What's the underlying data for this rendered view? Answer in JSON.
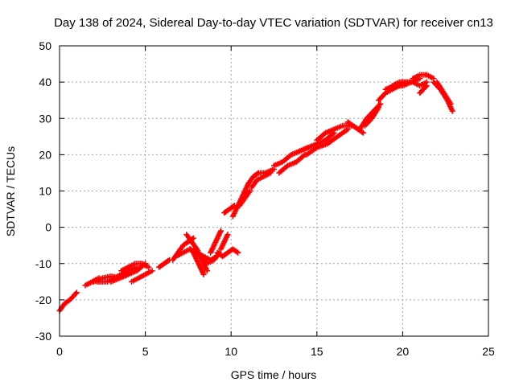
{
  "chart_data": {
    "type": "scatter",
    "title": "Day 138 of 2024, Sidereal Day-to-day VTEC variation (SDTVAR) for receiver cn13",
    "xlabel": "GPS time / hours",
    "ylabel": "SDTVAR / TECUs",
    "xlim": [
      0,
      25
    ],
    "ylim": [
      -30,
      50
    ],
    "xticks": [
      0,
      5,
      10,
      15,
      20,
      25
    ],
    "yticks": [
      -30,
      -20,
      -10,
      0,
      10,
      20,
      30,
      40,
      50
    ],
    "grid": true,
    "marker": "+",
    "marker_color": "#ff0000",
    "series": [
      {
        "name": "SDTVAR",
        "segments": [
          {
            "x": [
              0.0,
              0.3,
              0.6,
              1.0
            ],
            "y": [
              -23,
              -21,
              -20,
              -18
            ]
          },
          {
            "x": [
              1.5,
              1.9,
              2.3
            ],
            "y": [
              -16,
              -15,
              -14
            ]
          },
          {
            "x": [
              2.0,
              2.5,
              3.0,
              3.5,
              4.0
            ],
            "y": [
              -15,
              -14,
              -13.5,
              -14,
              -13
            ]
          },
          {
            "x": [
              2.2,
              2.8,
              3.2,
              3.6,
              4.0,
              4.5
            ],
            "y": [
              -15,
              -15,
              -14,
              -13,
              -12,
              -11
            ]
          },
          {
            "x": [
              3.0,
              3.5,
              4.0,
              4.5,
              5.0
            ],
            "y": [
              -15,
              -14,
              -13,
              -12,
              -10
            ]
          },
          {
            "x": [
              3.6,
              4.0,
              4.4,
              4.8,
              5.2
            ],
            "y": [
              -12,
              -11,
              -10,
              -10,
              -11
            ]
          },
          {
            "x": [
              4.2,
              4.6,
              5.0,
              5.4
            ],
            "y": [
              -15,
              -14,
              -13,
              -12
            ]
          },
          {
            "x": [
              5.8,
              6.1,
              6.4
            ],
            "y": [
              -11,
              -10,
              -9
            ]
          },
          {
            "x": [
              6.6,
              6.9,
              7.2,
              7.5,
              7.8
            ],
            "y": [
              -9,
              -7,
              -5,
              -4,
              -3
            ]
          },
          {
            "x": [
              6.8,
              7.2,
              7.6,
              8.0,
              8.4,
              8.8,
              9.2
            ],
            "y": [
              -8,
              -7,
              -6,
              -7,
              -8,
              -9,
              -8
            ]
          },
          {
            "x": [
              7.4,
              7.7,
              8.0,
              8.3,
              8.6
            ],
            "y": [
              -2,
              -4,
              -6,
              -9,
              -12
            ]
          },
          {
            "x": [
              7.6,
              7.8,
              8.0,
              8.2,
              8.4
            ],
            "y": [
              -6,
              -7,
              -9,
              -11,
              -13
            ]
          },
          {
            "x": [
              8.2,
              8.6,
              9.0,
              9.3
            ],
            "y": [
              -8,
              -10,
              -9,
              -7
            ]
          },
          {
            "x": [
              8.8,
              9.0,
              9.2,
              9.4
            ],
            "y": [
              -7,
              -5,
              -3,
              -1
            ]
          },
          {
            "x": [
              9.4,
              9.6,
              9.8
            ],
            "y": [
              -6,
              -4,
              -2
            ]
          },
          {
            "x": [
              9.2,
              9.5,
              9.8,
              10.1,
              10.4
            ],
            "y": [
              -7,
              -8,
              -7,
              -6,
              -7
            ]
          },
          {
            "x": [
              9.6,
              9.9,
              10.2
            ],
            "y": [
              4,
              5,
              6
            ]
          },
          {
            "x": [
              10.1,
              10.4,
              10.7,
              11.0
            ],
            "y": [
              3,
              6,
              9,
              12
            ]
          },
          {
            "x": [
              10.5,
              10.8,
              11.1
            ],
            "y": [
              6,
              8,
              10
            ]
          },
          {
            "x": [
              11.0,
              11.3,
              11.6,
              12.0,
              12.5
            ],
            "y": [
              12,
              14,
              15,
              15,
              16
            ]
          },
          {
            "x": [
              11.2,
              11.5,
              11.9,
              12.3
            ],
            "y": [
              11,
              13,
              14,
              15
            ]
          },
          {
            "x": [
              12.5,
              13.0,
              13.5,
              14.0,
              14.5
            ],
            "y": [
              17,
              18,
              20,
              21,
              22
            ]
          },
          {
            "x": [
              12.8,
              13.3,
              13.8,
              14.3
            ],
            "y": [
              15,
              17,
              18,
              20
            ]
          },
          {
            "x": [
              14.0,
              14.5,
              15.0,
              15.5,
              16.0
            ],
            "y": [
              21,
              22,
              23,
              24,
              26
            ]
          },
          {
            "x": [
              14.4,
              15.0,
              15.6,
              16.2,
              16.8
            ],
            "y": [
              20,
              22,
              23,
              25,
              27
            ]
          },
          {
            "x": [
              15.0,
              15.5,
              16.0,
              16.5,
              17.0
            ],
            "y": [
              24,
              26,
              27,
              28,
              28
            ]
          },
          {
            "x": [
              16.8,
              17.1,
              17.4,
              17.7
            ],
            "y": [
              29,
              28,
              27,
              26
            ]
          },
          {
            "x": [
              17.5,
              17.9,
              18.3,
              18.7
            ],
            "y": [
              27,
              30,
              32,
              34
            ]
          },
          {
            "x": [
              17.8,
              18.2,
              18.6
            ],
            "y": [
              28,
              30,
              33
            ]
          },
          {
            "x": [
              18.6,
              19.0,
              19.4,
              19.8,
              20.2
            ],
            "y": [
              35,
              37,
              38,
              39,
              40
            ]
          },
          {
            "x": [
              19.0,
              19.5,
              20.0,
              20.5,
              21.0
            ],
            "y": [
              38,
              39,
              39,
              40,
              41
            ]
          },
          {
            "x": [
              19.4,
              19.8,
              20.2,
              20.6,
              21.0,
              21.4
            ],
            "y": [
              39,
              40,
              40,
              40,
              39,
              40
            ]
          },
          {
            "x": [
              20.6,
              21.0,
              21.4,
              21.8
            ],
            "y": [
              41,
              42,
              42,
              41
            ]
          },
          {
            "x": [
              21.0,
              21.2,
              21.4
            ],
            "y": [
              37,
              38,
              39
            ]
          },
          {
            "x": [
              21.8,
              22.2,
              22.6,
              22.9
            ],
            "y": [
              40,
              38,
              35,
              32
            ]
          },
          {
            "x": [
              22.0,
              22.4,
              22.8
            ],
            "y": [
              40,
              37,
              34
            ]
          }
        ]
      }
    ]
  }
}
